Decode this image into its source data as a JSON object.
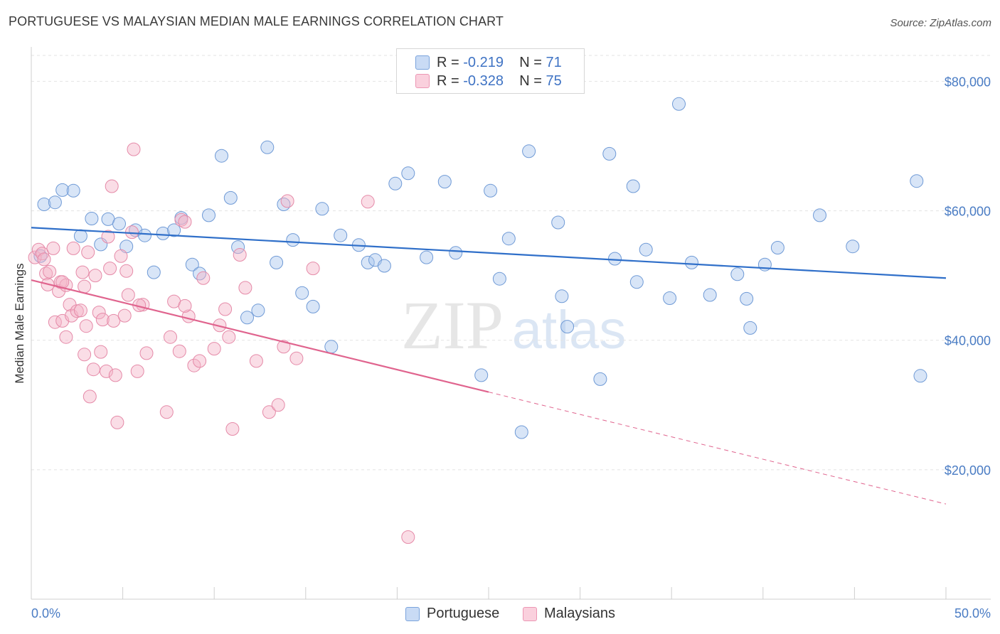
{
  "header": {
    "title": "PORTUGUESE VS MALAYSIAN MEDIAN MALE EARNINGS CORRELATION CHART",
    "source": "Source: ZipAtlas.com"
  },
  "watermark": {
    "zip": "ZIP",
    "atlas": "atlas"
  },
  "legend": {
    "rows": [
      {
        "r_label": "R = ",
        "r_value": "-0.219",
        "n_label": "N = ",
        "n_value": "71",
        "color": "#a9c6ee"
      },
      {
        "r_label": "R = ",
        "r_value": "-0.328",
        "n_label": "N = ",
        "n_value": "75",
        "color": "#f5b3c8"
      }
    ]
  },
  "bottom_legend": {
    "items": [
      "Portuguese",
      "Malaysians"
    ]
  },
  "colors": {
    "portuguese_fill": "#a9c6ee",
    "portuguese_stroke": "#6f9ad6",
    "portuguese_line": "#2f6fc9",
    "malaysian_fill": "#f5b3c8",
    "malaysian_stroke": "#e58aa8",
    "malaysian_line": "#e0648e",
    "tick_text": "#4a7cc4",
    "grid": "#e3e3e3"
  },
  "chart_data": {
    "type": "scatter",
    "title": "PORTUGUESE VS MALAYSIAN MEDIAN MALE EARNINGS CORRELATION CHART",
    "xlabel": "",
    "ylabel": "Median Male Earnings",
    "xlim": [
      0,
      50
    ],
    "ylim": [
      0,
      84000
    ],
    "x_tick_labels": [
      "0.0%",
      "50.0%"
    ],
    "y_ticks": [
      {
        "value": 20000,
        "label": "$20,000"
      },
      {
        "value": 40000,
        "label": "$40,000"
      },
      {
        "value": 60000,
        "label": "$60,000"
      },
      {
        "value": 80000,
        "label": "$80,000"
      }
    ],
    "grid": "horizontal dashed",
    "series": [
      {
        "name": "Portuguese",
        "trend": {
          "x": [
            0,
            50
          ],
          "y": [
            57400,
            49600
          ],
          "dashed_from_x": null
        },
        "points": [
          [
            0.5,
            53000
          ],
          [
            0.7,
            61000
          ],
          [
            1.3,
            61300
          ],
          [
            1.7,
            63200
          ],
          [
            2.3,
            63100
          ],
          [
            2.7,
            56100
          ],
          [
            3.3,
            58800
          ],
          [
            3.8,
            54800
          ],
          [
            4.2,
            58700
          ],
          [
            4.8,
            58000
          ],
          [
            5.2,
            54500
          ],
          [
            5.7,
            57000
          ],
          [
            6.2,
            56200
          ],
          [
            6.7,
            50500
          ],
          [
            7.2,
            56500
          ],
          [
            7.8,
            57000
          ],
          [
            8.2,
            58900
          ],
          [
            8.8,
            51700
          ],
          [
            9.2,
            50300
          ],
          [
            9.7,
            59300
          ],
          [
            10.4,
            68500
          ],
          [
            10.9,
            62000
          ],
          [
            11.3,
            54400
          ],
          [
            11.8,
            43500
          ],
          [
            12.4,
            44600
          ],
          [
            12.9,
            69800
          ],
          [
            13.4,
            52000
          ],
          [
            13.8,
            61000
          ],
          [
            14.3,
            55500
          ],
          [
            14.8,
            47300
          ],
          [
            15.4,
            45200
          ],
          [
            15.9,
            60300
          ],
          [
            16.4,
            39000
          ],
          [
            16.9,
            56200
          ],
          [
            17.9,
            54700
          ],
          [
            18.4,
            52000
          ],
          [
            18.8,
            52400
          ],
          [
            19.3,
            51500
          ],
          [
            19.9,
            64200
          ],
          [
            20.6,
            65800
          ],
          [
            21.6,
            52800
          ],
          [
            22.6,
            64500
          ],
          [
            23.2,
            53500
          ],
          [
            24.6,
            34600
          ],
          [
            25.1,
            63100
          ],
          [
            25.6,
            49500
          ],
          [
            26.1,
            55700
          ],
          [
            26.8,
            25800
          ],
          [
            27.2,
            69200
          ],
          [
            28.8,
            58200
          ],
          [
            29.0,
            46800
          ],
          [
            29.3,
            42100
          ],
          [
            31.1,
            34000
          ],
          [
            31.6,
            68800
          ],
          [
            31.9,
            52600
          ],
          [
            32.9,
            63800
          ],
          [
            33.1,
            49000
          ],
          [
            33.6,
            54000
          ],
          [
            34.9,
            46500
          ],
          [
            35.4,
            76500
          ],
          [
            36.1,
            52000
          ],
          [
            37.1,
            47000
          ],
          [
            38.6,
            50200
          ],
          [
            39.1,
            46400
          ],
          [
            39.3,
            41900
          ],
          [
            40.1,
            51700
          ],
          [
            40.8,
            54300
          ],
          [
            43.1,
            59300
          ],
          [
            44.9,
            54500
          ],
          [
            48.4,
            64600
          ],
          [
            48.6,
            34500
          ]
        ]
      },
      {
        "name": "Malaysians",
        "trend": {
          "x": [
            0,
            25
          ],
          "y": [
            49300,
            32000
          ],
          "dashed_from_x": 25,
          "dashed_to": [
            50,
            14700
          ]
        },
        "points": [
          [
            0.2,
            52800
          ],
          [
            0.4,
            54000
          ],
          [
            0.6,
            53400
          ],
          [
            0.7,
            52500
          ],
          [
            0.8,
            50300
          ],
          [
            0.9,
            48600
          ],
          [
            1.0,
            50600
          ],
          [
            1.2,
            54200
          ],
          [
            1.3,
            42800
          ],
          [
            1.5,
            47600
          ],
          [
            1.6,
            49000
          ],
          [
            1.7,
            43000
          ],
          [
            1.9,
            48500
          ],
          [
            1.9,
            40500
          ],
          [
            2.1,
            45500
          ],
          [
            2.2,
            43800
          ],
          [
            2.3,
            54200
          ],
          [
            2.5,
            44500
          ],
          [
            2.7,
            44600
          ],
          [
            2.8,
            50500
          ],
          [
            2.9,
            48300
          ],
          [
            3.0,
            42200
          ],
          [
            3.1,
            53600
          ],
          [
            3.2,
            31300
          ],
          [
            3.4,
            35500
          ],
          [
            3.5,
            50000
          ],
          [
            3.7,
            44300
          ],
          [
            3.8,
            38200
          ],
          [
            3.9,
            43200
          ],
          [
            4.1,
            35200
          ],
          [
            4.2,
            56000
          ],
          [
            4.3,
            51100
          ],
          [
            4.4,
            63800
          ],
          [
            4.5,
            43000
          ],
          [
            4.6,
            34600
          ],
          [
            4.7,
            27300
          ],
          [
            4.9,
            53000
          ],
          [
            5.1,
            43800
          ],
          [
            5.2,
            50700
          ],
          [
            5.3,
            47000
          ],
          [
            5.5,
            56700
          ],
          [
            5.6,
            69500
          ],
          [
            5.8,
            35200
          ],
          [
            6.1,
            45500
          ],
          [
            6.3,
            38000
          ],
          [
            7.4,
            28900
          ],
          [
            7.6,
            40500
          ],
          [
            7.8,
            46000
          ],
          [
            8.1,
            38300
          ],
          [
            8.2,
            58600
          ],
          [
            8.4,
            58300
          ],
          [
            8.6,
            43700
          ],
          [
            8.9,
            36100
          ],
          [
            9.2,
            36800
          ],
          [
            9.4,
            49600
          ],
          [
            10.0,
            38700
          ],
          [
            10.3,
            42300
          ],
          [
            10.6,
            44800
          ],
          [
            10.8,
            40500
          ],
          [
            11.0,
            26300
          ],
          [
            11.4,
            53200
          ],
          [
            11.7,
            48100
          ],
          [
            13.0,
            28900
          ],
          [
            13.5,
            30000
          ],
          [
            13.8,
            39000
          ],
          [
            14.0,
            61500
          ],
          [
            14.5,
            37200
          ],
          [
            15.4,
            51100
          ],
          [
            18.4,
            61400
          ],
          [
            20.6,
            9600
          ],
          [
            1.7,
            49000
          ],
          [
            5.9,
            45400
          ],
          [
            2.9,
            37800
          ],
          [
            8.4,
            45300
          ],
          [
            12.3,
            36800
          ]
        ]
      }
    ]
  }
}
